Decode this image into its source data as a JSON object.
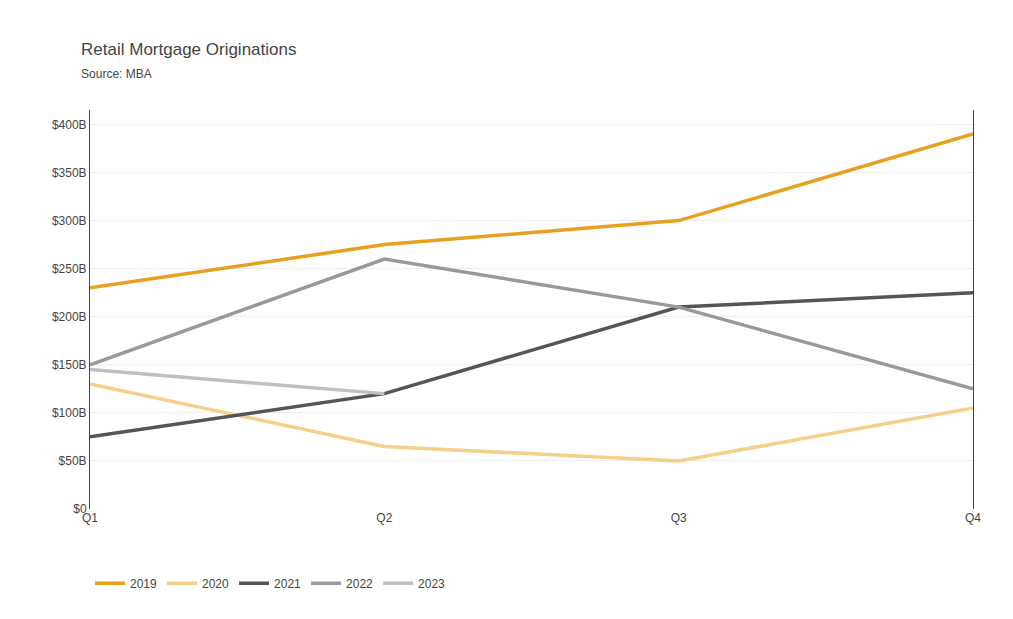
{
  "chart_data": {
    "type": "line",
    "title": "Retail Mortgage Originations",
    "subtitle": "Source: MBA",
    "categories": [
      "Q1",
      "Q2",
      "Q3",
      "Q4"
    ],
    "series": [
      {
        "name": "2019",
        "color": "#E8A020",
        "values": [
          230,
          275,
          300,
          390
        ]
      },
      {
        "name": "2020",
        "color": "#F5D08A",
        "values": [
          130,
          65,
          50,
          105
        ]
      },
      {
        "name": "2021",
        "color": "#555555",
        "values": [
          75,
          120,
          210,
          225
        ]
      },
      {
        "name": "2022",
        "color": "#999999",
        "values": [
          150,
          260,
          210,
          125
        ]
      },
      {
        "name": "2023",
        "color": "#C0C0C0",
        "values": [
          145,
          120,
          null,
          null
        ]
      }
    ],
    "ylim": [
      0,
      415
    ],
    "yticks": [
      {
        "value": 0,
        "label": "$0"
      },
      {
        "value": 50,
        "label": "$50B"
      },
      {
        "value": 100,
        "label": "$100B"
      },
      {
        "value": 150,
        "label": "$150B"
      },
      {
        "value": 200,
        "label": "$200B"
      },
      {
        "value": 250,
        "label": "$250B"
      },
      {
        "value": 300,
        "label": "$300B"
      },
      {
        "value": 350,
        "label": "$350B"
      },
      {
        "value": 400,
        "label": "$400B"
      }
    ],
    "grid": true,
    "legend": "bottom"
  }
}
